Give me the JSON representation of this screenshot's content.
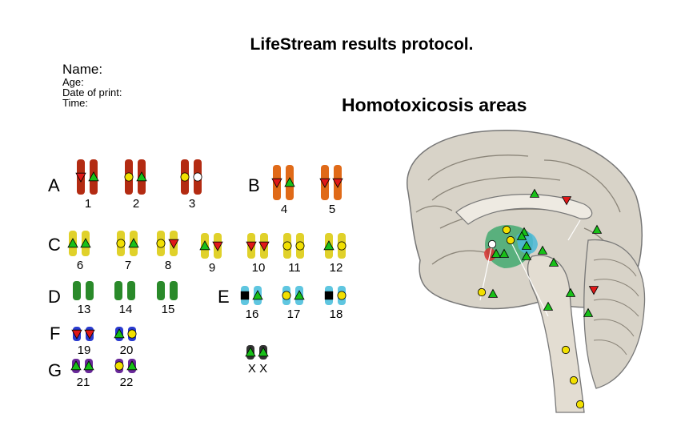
{
  "protocol_title": "LifeStream results protocol.",
  "fields": {
    "name": "Name:",
    "age": "Age:",
    "date": "Date of print:",
    "time": "Time:"
  },
  "brain_title": "Homotoxicosis areas",
  "groups": [
    "A",
    "B",
    "C",
    "D",
    "E",
    "F",
    "G"
  ],
  "chromosomes": [
    {
      "label": "1",
      "color": "#b32b12",
      "markers": [
        "tri-red",
        "tri-green"
      ]
    },
    {
      "label": "2",
      "color": "#b32b12",
      "markers": [
        "circle-yellow",
        "tri-green"
      ]
    },
    {
      "label": "3",
      "color": "#b32b12",
      "markers": [
        "circle-yellow",
        "circle-white"
      ]
    },
    {
      "label": "4",
      "color": "#e06a18",
      "markers": [
        "tri-red",
        "tri-green"
      ]
    },
    {
      "label": "5",
      "color": "#e06a18",
      "markers": [
        "tri-red",
        "tri-red"
      ]
    },
    {
      "label": "6",
      "color": "#e0d12a",
      "markers": [
        "tri-green",
        "tri-green"
      ]
    },
    {
      "label": "7",
      "color": "#e0d12a",
      "markers": [
        "circle-yellow",
        "tri-green"
      ]
    },
    {
      "label": "8",
      "color": "#e0d12a",
      "markers": [
        "circle-yellow",
        "tri-red"
      ]
    },
    {
      "label": "9",
      "color": "#e0d12a",
      "markers": [
        "tri-green",
        "tri-red"
      ]
    },
    {
      "label": "10",
      "color": "#e0d12a",
      "markers": [
        "tri-red",
        "tri-red"
      ]
    },
    {
      "label": "11",
      "color": "#e0d12a",
      "markers": [
        "circle-yellow",
        "circle-yellow"
      ]
    },
    {
      "label": "12",
      "color": "#e0d12a",
      "markers": [
        "tri-green",
        "circle-yellow"
      ]
    },
    {
      "label": "13",
      "color": "#2a8a2a",
      "markers": []
    },
    {
      "label": "14",
      "color": "#2a8a2a",
      "markers": []
    },
    {
      "label": "15",
      "color": "#2a8a2a",
      "markers": []
    },
    {
      "label": "16",
      "color": "#5fc6e0",
      "markers": [
        "square-black",
        "tri-green"
      ]
    },
    {
      "label": "17",
      "color": "#5fc6e0",
      "markers": [
        "circle-yellow",
        "tri-green"
      ]
    },
    {
      "label": "18",
      "color": "#5fc6e0",
      "markers": [
        "square-black",
        "circle-yellow"
      ]
    },
    {
      "label": "19",
      "color": "#2a3bd0",
      "markers": [
        "tri-red",
        "tri-red"
      ]
    },
    {
      "label": "20",
      "color": "#2a3bd0",
      "markers": [
        "tri-green",
        "circle-yellow"
      ]
    },
    {
      "label": "21",
      "color": "#6a2a9a",
      "markers": [
        "tri-green",
        "tri-green"
      ]
    },
    {
      "label": "22",
      "color": "#6a2a9a",
      "markers": [
        "circle-yellow",
        "tri-green"
      ]
    },
    {
      "label": "X X",
      "color": "#333333",
      "markers": [
        "tri-green",
        "tri-green"
      ]
    }
  ],
  "brain_markers": [
    "tri-green",
    "tri-red",
    "tri-green",
    "circle-yellow",
    "tri-green",
    "circle-yellow",
    "tri-green",
    "tri-green",
    "tri-green",
    "circle-white",
    "tri-green",
    "tri-green",
    "tri-green",
    "tri-green",
    "circle-yellow",
    "tri-green",
    "tri-green",
    "tri-red",
    "tri-green",
    "tri-green",
    "circle-yellow",
    "circle-yellow",
    "circle-yellow"
  ]
}
